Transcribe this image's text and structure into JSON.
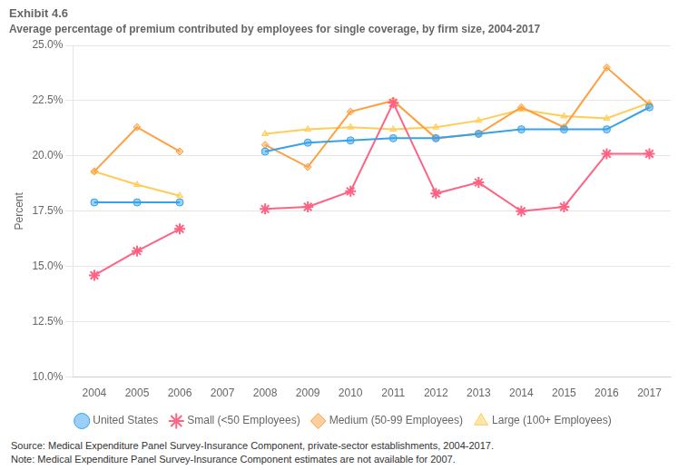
{
  "chart_data": {
    "type": "line",
    "title": "Exhibit 4.6",
    "subtitle": "Average percentage of premium contributed by employees for single coverage, by firm size, 2004-2017",
    "y_label": "Percent",
    "x": [
      2004,
      2005,
      2006,
      2007,
      2008,
      2009,
      2010,
      2011,
      2012,
      2013,
      2014,
      2015,
      2016,
      2017
    ],
    "series": [
      {
        "name": "United States",
        "marker": "circle",
        "line_style": "solid",
        "values": [
          17.9,
          17.9,
          17.9,
          null,
          20.2,
          20.6,
          20.7,
          20.8,
          20.8,
          21.0,
          21.2,
          21.2,
          21.2,
          22.2
        ]
      },
      {
        "name": "Small (<50 Employees)",
        "marker": "star",
        "line_style": "solid",
        "values": [
          14.6,
          15.7,
          16.7,
          null,
          17.6,
          17.7,
          18.4,
          22.4,
          18.3,
          18.8,
          17.5,
          17.7,
          20.1,
          20.1
        ]
      },
      {
        "name": "Medium (50-99 Employees)",
        "marker": "diamond",
        "line_style": "solid",
        "values": [
          19.3,
          21.3,
          20.2,
          null,
          20.5,
          19.5,
          22.0,
          22.5,
          20.8,
          21.0,
          22.2,
          21.3,
          24.0,
          22.3
        ]
      },
      {
        "name": "Large (100+ Employees)",
        "marker": "triangle",
        "line_style": "solid",
        "values": [
          19.3,
          18.7,
          18.2,
          null,
          21.0,
          21.2,
          21.3,
          21.2,
          21.3,
          21.6,
          22.1,
          21.8,
          21.7,
          22.4
        ]
      }
    ],
    "xlim": [
      2003.5,
      2017.5
    ],
    "xticks": [
      2004,
      2005,
      2006,
      2007,
      2008,
      2009,
      2010,
      2011,
      2012,
      2013,
      2014,
      2015,
      2016,
      2017
    ],
    "ylim": [
      10.0,
      25.0
    ],
    "yticks": [
      {
        "value": 10.0,
        "label": "10.0%"
      },
      {
        "value": 12.5,
        "label": "12.5%"
      },
      {
        "value": 15.0,
        "label": "15.0%"
      },
      {
        "value": 17.5,
        "label": "17.5%"
      },
      {
        "value": 20.0,
        "label": "20.0%"
      },
      {
        "value": 22.5,
        "label": "22.5%"
      },
      {
        "value": 25.0,
        "label": "25.0%"
      }
    ],
    "grid": "y",
    "legend": "bottom",
    "annotations": [
      "Source: Medical Expenditure Panel Survey-Insurance Component, private-sector establishments, 2004-2017.",
      "Note: Medical Expenditure Panel Survey-Insurance Component estimates are not available for 2007."
    ]
  }
}
